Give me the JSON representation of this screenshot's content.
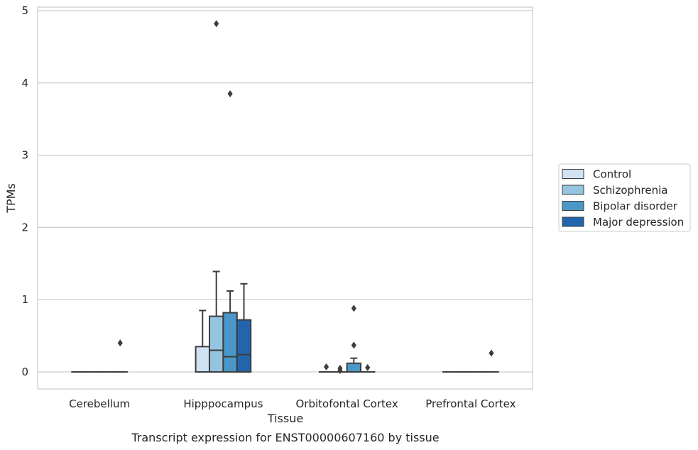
{
  "chart_data": {
    "type": "box",
    "caption": "Transcript expression for ENST00000607160 by tissue",
    "xlabel": "Tissue",
    "ylabel": "TPMs",
    "ylim": [
      -0.23,
      5.08
    ],
    "yticks": [
      0,
      1,
      2,
      3,
      4,
      5
    ],
    "grid": "horizontal",
    "legend_position": "right",
    "categories": [
      "Cerebellum",
      "Hipppocampus",
      "Orbitofontal Cortex",
      "Prefrontal Cortex"
    ],
    "series": [
      {
        "name": "Control",
        "color": "#d0e1f2",
        "boxes": [
          {
            "q1": 0,
            "median": 0,
            "q3": 0,
            "whislo": 0,
            "whishi": 0,
            "fliers": []
          },
          {
            "q1": 0,
            "median": 0,
            "q3": 0.35,
            "whislo": 0,
            "whishi": 0.85,
            "fliers": []
          },
          {
            "q1": 0,
            "median": 0,
            "q3": 0,
            "whislo": 0,
            "whishi": 0,
            "fliers": [
              0.07
            ]
          },
          {
            "q1": 0,
            "median": 0,
            "q3": 0,
            "whislo": 0,
            "whishi": 0,
            "fliers": []
          }
        ]
      },
      {
        "name": "Schizophrenia",
        "color": "#94c4df",
        "boxes": [
          {
            "q1": 0,
            "median": 0,
            "q3": 0,
            "whislo": 0,
            "whishi": 0,
            "fliers": []
          },
          {
            "q1": 0,
            "median": 0.3,
            "q3": 0.77,
            "whislo": 0,
            "whishi": 1.39,
            "fliers": [
              4.82
            ]
          },
          {
            "q1": 0,
            "median": 0,
            "q3": 0,
            "whislo": 0,
            "whishi": 0,
            "fliers": [
              0.02,
              0.05
            ]
          },
          {
            "q1": 0,
            "median": 0,
            "q3": 0,
            "whislo": 0,
            "whishi": 0,
            "fliers": []
          }
        ]
      },
      {
        "name": "Bipolar disorder",
        "color": "#4a98c9",
        "boxes": [
          {
            "q1": 0,
            "median": 0,
            "q3": 0,
            "whislo": 0,
            "whishi": 0,
            "fliers": []
          },
          {
            "q1": 0,
            "median": 0.21,
            "q3": 0.82,
            "whislo": 0,
            "whishi": 1.12,
            "fliers": [
              3.85
            ]
          },
          {
            "q1": 0,
            "median": 0,
            "q3": 0.12,
            "whislo": 0,
            "whishi": 0.19,
            "fliers": [
              0.37,
              0.88
            ]
          },
          {
            "q1": 0,
            "median": 0,
            "q3": 0,
            "whislo": 0,
            "whishi": 0,
            "fliers": []
          }
        ]
      },
      {
        "name": "Major depression",
        "color": "#2166ac",
        "boxes": [
          {
            "q1": 0,
            "median": 0,
            "q3": 0,
            "whislo": 0,
            "whishi": 0,
            "fliers": [
              0.4
            ]
          },
          {
            "q1": 0,
            "median": 0.24,
            "q3": 0.72,
            "whislo": 0,
            "whishi": 1.22,
            "fliers": []
          },
          {
            "q1": 0,
            "median": 0,
            "q3": 0,
            "whislo": 0,
            "whishi": 0,
            "fliers": [
              0.06
            ]
          },
          {
            "q1": 0,
            "median": 0,
            "q3": 0,
            "whislo": 0,
            "whishi": 0,
            "fliers": [
              0.26
            ]
          }
        ]
      }
    ]
  }
}
